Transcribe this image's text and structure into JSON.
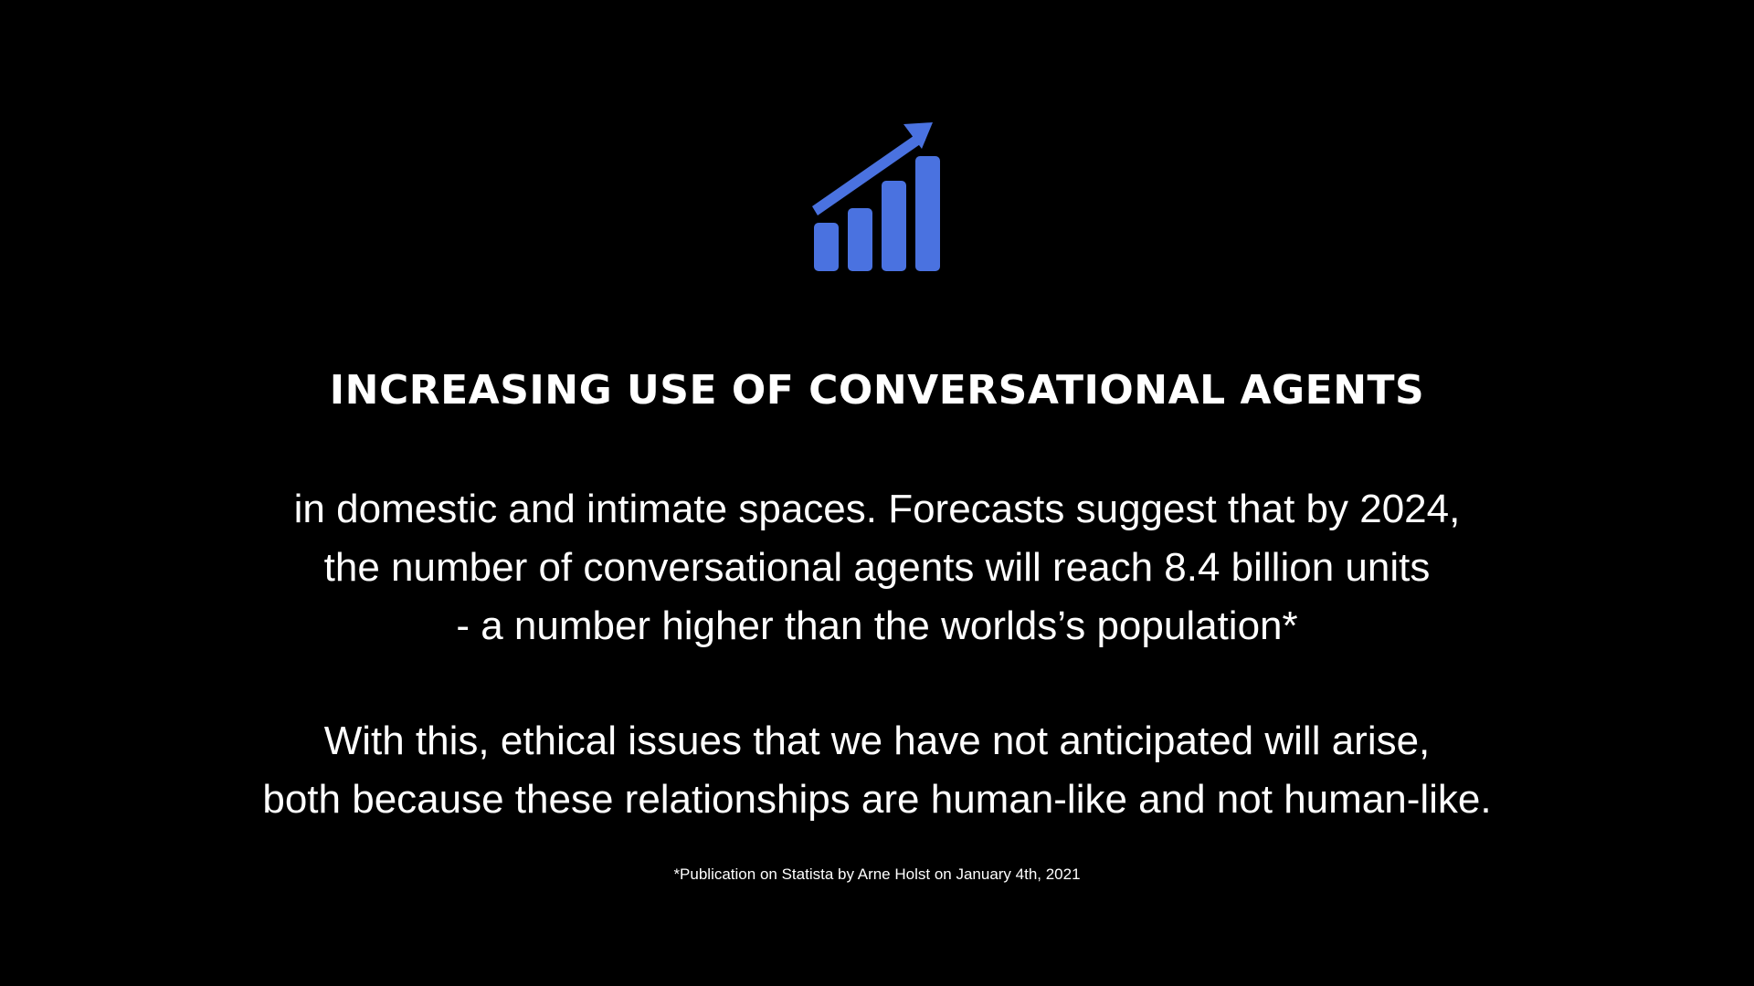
{
  "slide": {
    "icon": "growth-bar-chart-icon",
    "accent_color": "#4a72e0",
    "background_color": "#000000",
    "title": "INCREASING USE OF CONVERSATIONAL AGENTS",
    "paragraph_1": [
      "in domestic and intimate spaces. Forecasts suggest that by 2024,",
      "the number of conversational agents will reach 8.4 billion units",
      "- a number higher than the worlds’s population*"
    ],
    "paragraph_2": [
      "With this, ethical issues that we have not anticipated will arise,",
      "both because these relationships are human-like and not human-like."
    ],
    "footnote": "*Publication on Statista by Arne Holst on January 4th, 2021"
  }
}
